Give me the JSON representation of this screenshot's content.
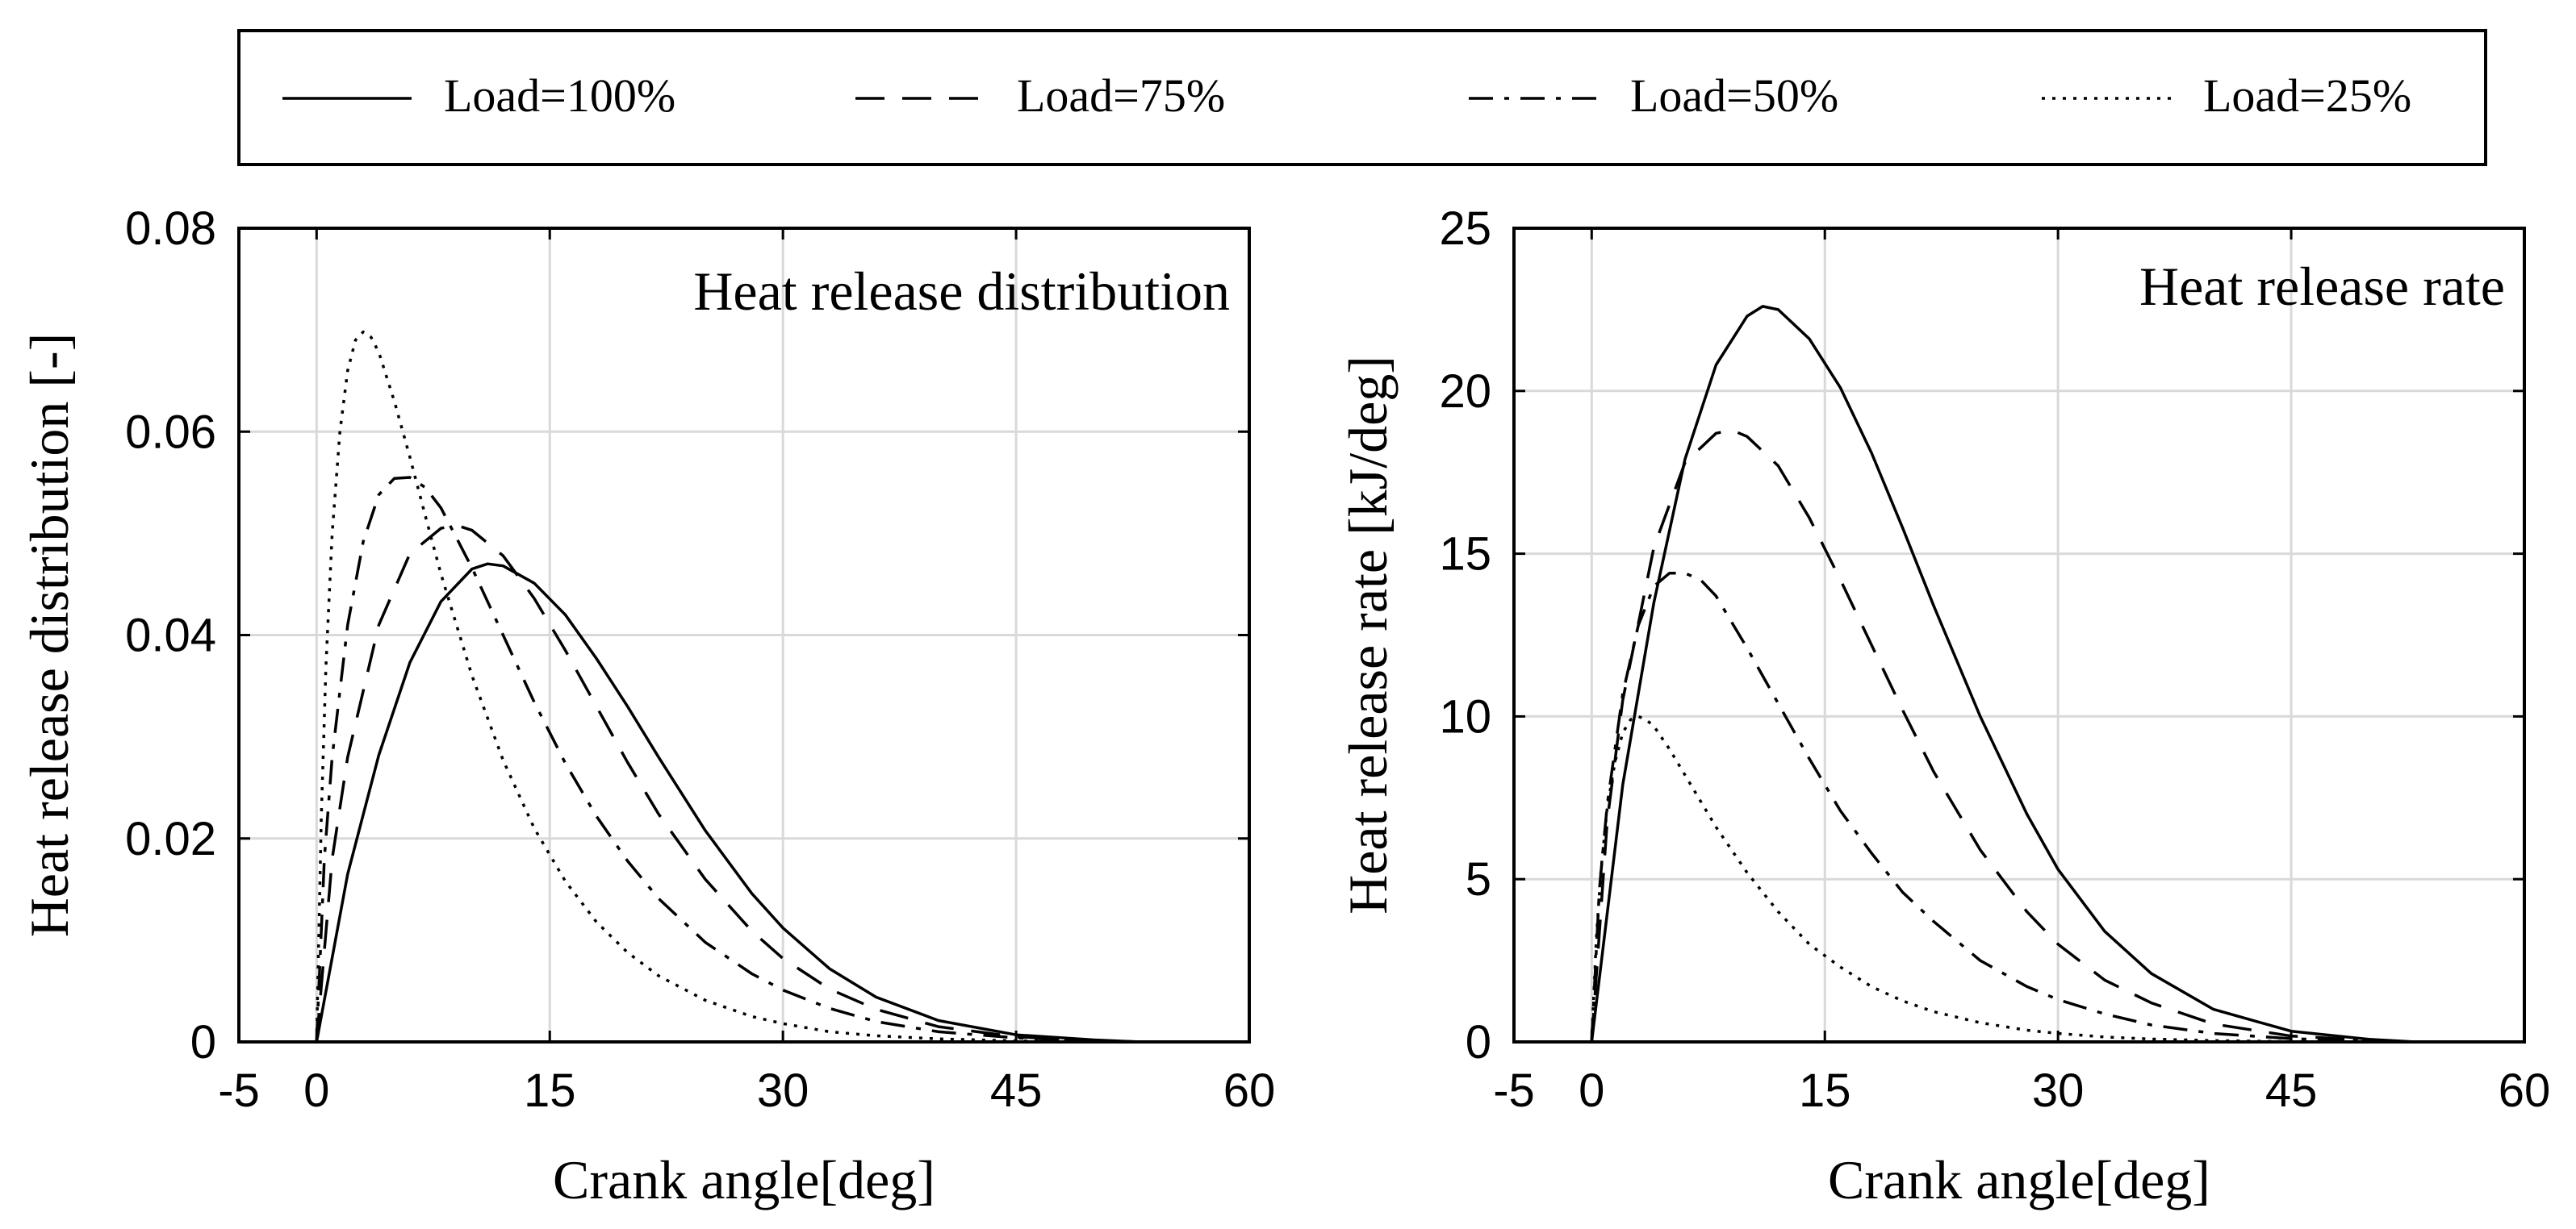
{
  "legend": {
    "entries": [
      {
        "label": "Load=100%",
        "style": "solid"
      },
      {
        "label": "Load=75%",
        "style": "dashed"
      },
      {
        "label": "Load=50%",
        "style": "dashdot"
      },
      {
        "label": "Load=25%",
        "style": "dotted"
      }
    ]
  },
  "chart_data": [
    {
      "type": "line",
      "title": "Heat release distribution",
      "xlabel": "Crank angle[deg]",
      "ylabel": "Heat release distribution [-]",
      "xlim": [
        -5,
        60
      ],
      "ylim": [
        0,
        0.08
      ],
      "xticks": [
        -5,
        0,
        15,
        30,
        45,
        60
      ],
      "xtick_labels": [
        "-5",
        "0",
        "15",
        "30",
        "45",
        "60"
      ],
      "yticks": [
        0,
        0.02,
        0.04,
        0.06,
        0.08
      ],
      "ytick_labels": [
        "0",
        "0.02",
        "0.04",
        "0.06",
        "0.08"
      ],
      "grid": true,
      "series": [
        {
          "name": "Load=100%",
          "style": "solid",
          "x": [
            0,
            2,
            4,
            6,
            8,
            10,
            11,
            12,
            14,
            16,
            18,
            20,
            22,
            25,
            28,
            30,
            33,
            36,
            40,
            45,
            50,
            53
          ],
          "y": [
            0,
            0.0165,
            0.0282,
            0.0373,
            0.0433,
            0.0465,
            0.047,
            0.0468,
            0.0451,
            0.042,
            0.0377,
            0.033,
            0.028,
            0.0208,
            0.0146,
            0.0112,
            0.0072,
            0.0044,
            0.0021,
            0.0007,
            0.0002,
            0
          ]
        },
        {
          "name": "Load=75%",
          "style": "dashed",
          "x": [
            0,
            1,
            2,
            4,
            6,
            8,
            9,
            10,
            12,
            14,
            16,
            18,
            20,
            22,
            25,
            28,
            30,
            33,
            36,
            40,
            45,
            50,
            53
          ],
          "y": [
            0,
            0.018,
            0.028,
            0.041,
            0.048,
            0.0505,
            0.0508,
            0.0503,
            0.0478,
            0.0436,
            0.0385,
            0.033,
            0.0275,
            0.0224,
            0.016,
            0.0109,
            0.0082,
            0.0052,
            0.0032,
            0.0015,
            0.0005,
            0.0001,
            0
          ]
        },
        {
          "name": "Load=50%",
          "style": "dashdot",
          "x": [
            0,
            0.5,
            1,
            2,
            3,
            4,
            5,
            6,
            7,
            8,
            10,
            12,
            14,
            16,
            18,
            20,
            22,
            25,
            28,
            30,
            33,
            36,
            40,
            45,
            50,
            53
          ],
          "y": [
            0,
            0.018,
            0.028,
            0.041,
            0.0492,
            0.0538,
            0.0554,
            0.0555,
            0.0545,
            0.0525,
            0.0466,
            0.04,
            0.0334,
            0.0274,
            0.0222,
            0.0178,
            0.0141,
            0.0098,
            0.0067,
            0.0051,
            0.0033,
            0.002,
            0.001,
            0.0004,
            0.0001,
            0
          ]
        },
        {
          "name": "Load=25%",
          "style": "dotted",
          "x": [
            0,
            0.3,
            0.6,
            1,
            1.5,
            2,
            2.5,
            3,
            3.5,
            4,
            5,
            6,
            7,
            8,
            10,
            12,
            14,
            16,
            18,
            20,
            22,
            25,
            28,
            30,
            33,
            36,
            40,
            45,
            50
          ],
          "y": [
            0,
            0.022,
            0.037,
            0.05,
            0.06,
            0.066,
            0.069,
            0.0698,
            0.0693,
            0.0678,
            0.063,
            0.0575,
            0.0517,
            0.046,
            0.036,
            0.0277,
            0.021,
            0.0158,
            0.0118,
            0.0088,
            0.0065,
            0.0041,
            0.0025,
            0.0018,
            0.001,
            0.0006,
            0.0003,
            0.0001,
            0
          ]
        }
      ]
    },
    {
      "type": "line",
      "title": "Heat release rate",
      "xlabel": "Crank angle[deg]",
      "ylabel": "Heat release rate [kJ/deg]",
      "xlim": [
        -5,
        60
      ],
      "ylim": [
        0,
        25
      ],
      "xticks": [
        -5,
        0,
        15,
        30,
        45,
        60
      ],
      "xtick_labels": [
        "-5",
        "0",
        "15",
        "30",
        "45",
        "60"
      ],
      "yticks": [
        0,
        5,
        10,
        15,
        20,
        25
      ],
      "ytick_labels": [
        "0",
        "5",
        "10",
        "15",
        "20",
        "25"
      ],
      "grid": true,
      "series": [
        {
          "name": "Load=100%",
          "style": "solid",
          "x": [
            0,
            2,
            4,
            6,
            8,
            10,
            11,
            12,
            14,
            16,
            18,
            20,
            22,
            25,
            28,
            30,
            33,
            36,
            40,
            45,
            50,
            53
          ],
          "y": [
            0,
            7.9,
            13.5,
            17.9,
            20.8,
            22.3,
            22.6,
            22.5,
            21.6,
            20.1,
            18.1,
            15.8,
            13.4,
            10.0,
            7.0,
            5.3,
            3.4,
            2.1,
            1.0,
            0.33,
            0.08,
            0
          ]
        },
        {
          "name": "Load=75%",
          "style": "dashed",
          "x": [
            0,
            1,
            2,
            4,
            6,
            8,
            9,
            10,
            12,
            14,
            16,
            18,
            20,
            22,
            25,
            28,
            30,
            33,
            36,
            40,
            45,
            50,
            53
          ],
          "y": [
            0,
            6.8,
            10.5,
            15.2,
            17.8,
            18.7,
            18.8,
            18.6,
            17.7,
            16.1,
            14.2,
            12.2,
            10.2,
            8.3,
            5.9,
            4.0,
            3.0,
            1.9,
            1.2,
            0.55,
            0.18,
            0.05,
            0
          ]
        },
        {
          "name": "Load=50%",
          "style": "dashdot",
          "x": [
            0,
            0.5,
            1,
            2,
            3,
            4,
            5,
            6,
            7,
            8,
            10,
            12,
            14,
            16,
            18,
            20,
            22,
            25,
            28,
            30,
            33,
            36,
            40,
            45,
            50,
            53
          ],
          "y": [
            0,
            4.7,
            7.3,
            10.7,
            12.8,
            14.0,
            14.4,
            14.4,
            14.2,
            13.7,
            12.1,
            10.4,
            8.7,
            7.1,
            5.8,
            4.6,
            3.7,
            2.5,
            1.7,
            1.3,
            0.86,
            0.52,
            0.26,
            0.1,
            0.03,
            0
          ]
        },
        {
          "name": "Load=25%",
          "style": "dotted",
          "x": [
            0,
            0.3,
            0.6,
            1,
            1.5,
            2,
            2.5,
            3,
            3.5,
            4,
            5,
            6,
            7,
            8,
            10,
            12,
            14,
            16,
            18,
            20,
            22,
            25,
            28,
            30,
            33,
            36,
            40,
            45,
            50
          ],
          "y": [
            0,
            3.2,
            5.3,
            7.2,
            8.6,
            9.5,
            9.9,
            10.0,
            9.9,
            9.7,
            9.0,
            8.2,
            7.4,
            6.6,
            5.2,
            4.0,
            3.0,
            2.3,
            1.7,
            1.26,
            0.93,
            0.59,
            0.36,
            0.26,
            0.15,
            0.09,
            0.04,
            0.01,
            0
          ]
        }
      ]
    }
  ]
}
